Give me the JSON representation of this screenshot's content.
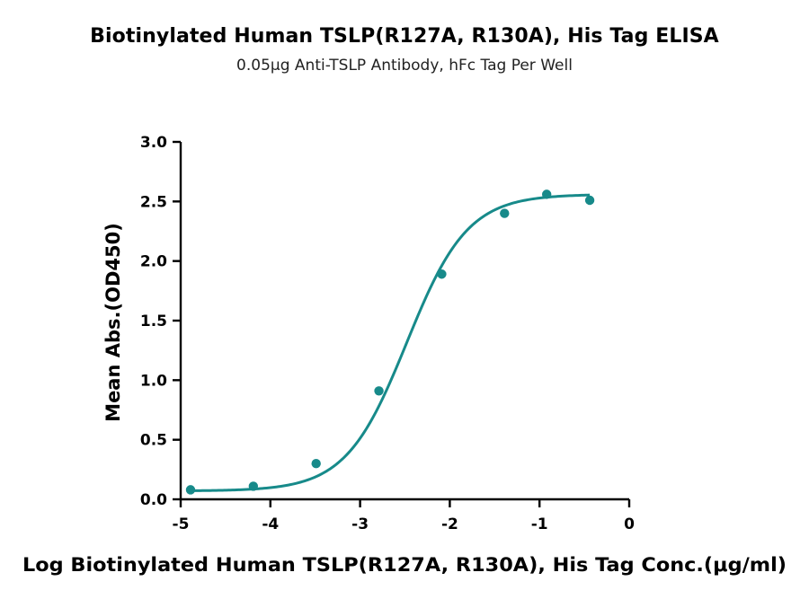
{
  "chart_data": {
    "type": "scatter",
    "title": "Biotinylated Human TSLP(R127A, R130A), His Tag ELISA",
    "subtitle": "0.05μg Anti-TSLP Antibody, hFc Tag Per Well",
    "xlabel": "Log Biotinylated Human TSLP(R127A, R130A), His Tag Conc.(μg/ml)",
    "ylabel": "Mean Abs.(OD450)",
    "xlim": [
      -5,
      0
    ],
    "ylim": [
      0,
      3.0
    ],
    "x_ticks": [
      "-5",
      "-4",
      "-3",
      "-2",
      "-1",
      "0"
    ],
    "y_ticks": [
      "0.0",
      "0.5",
      "1.0",
      "1.5",
      "2.0",
      "2.5",
      "3.0"
    ],
    "grid": false,
    "series": [
      {
        "x": [
          -4.89,
          -4.19,
          -3.49,
          -2.79,
          -2.09,
          -1.39,
          -0.92,
          -0.44
        ],
        "y": [
          0.08,
          0.11,
          0.3,
          0.91,
          1.89,
          2.4,
          2.56,
          2.51
        ],
        "fit": "four-parameter logistic"
      }
    ],
    "colors": {
      "series": "#178a8a",
      "axes": "#000000"
    }
  }
}
